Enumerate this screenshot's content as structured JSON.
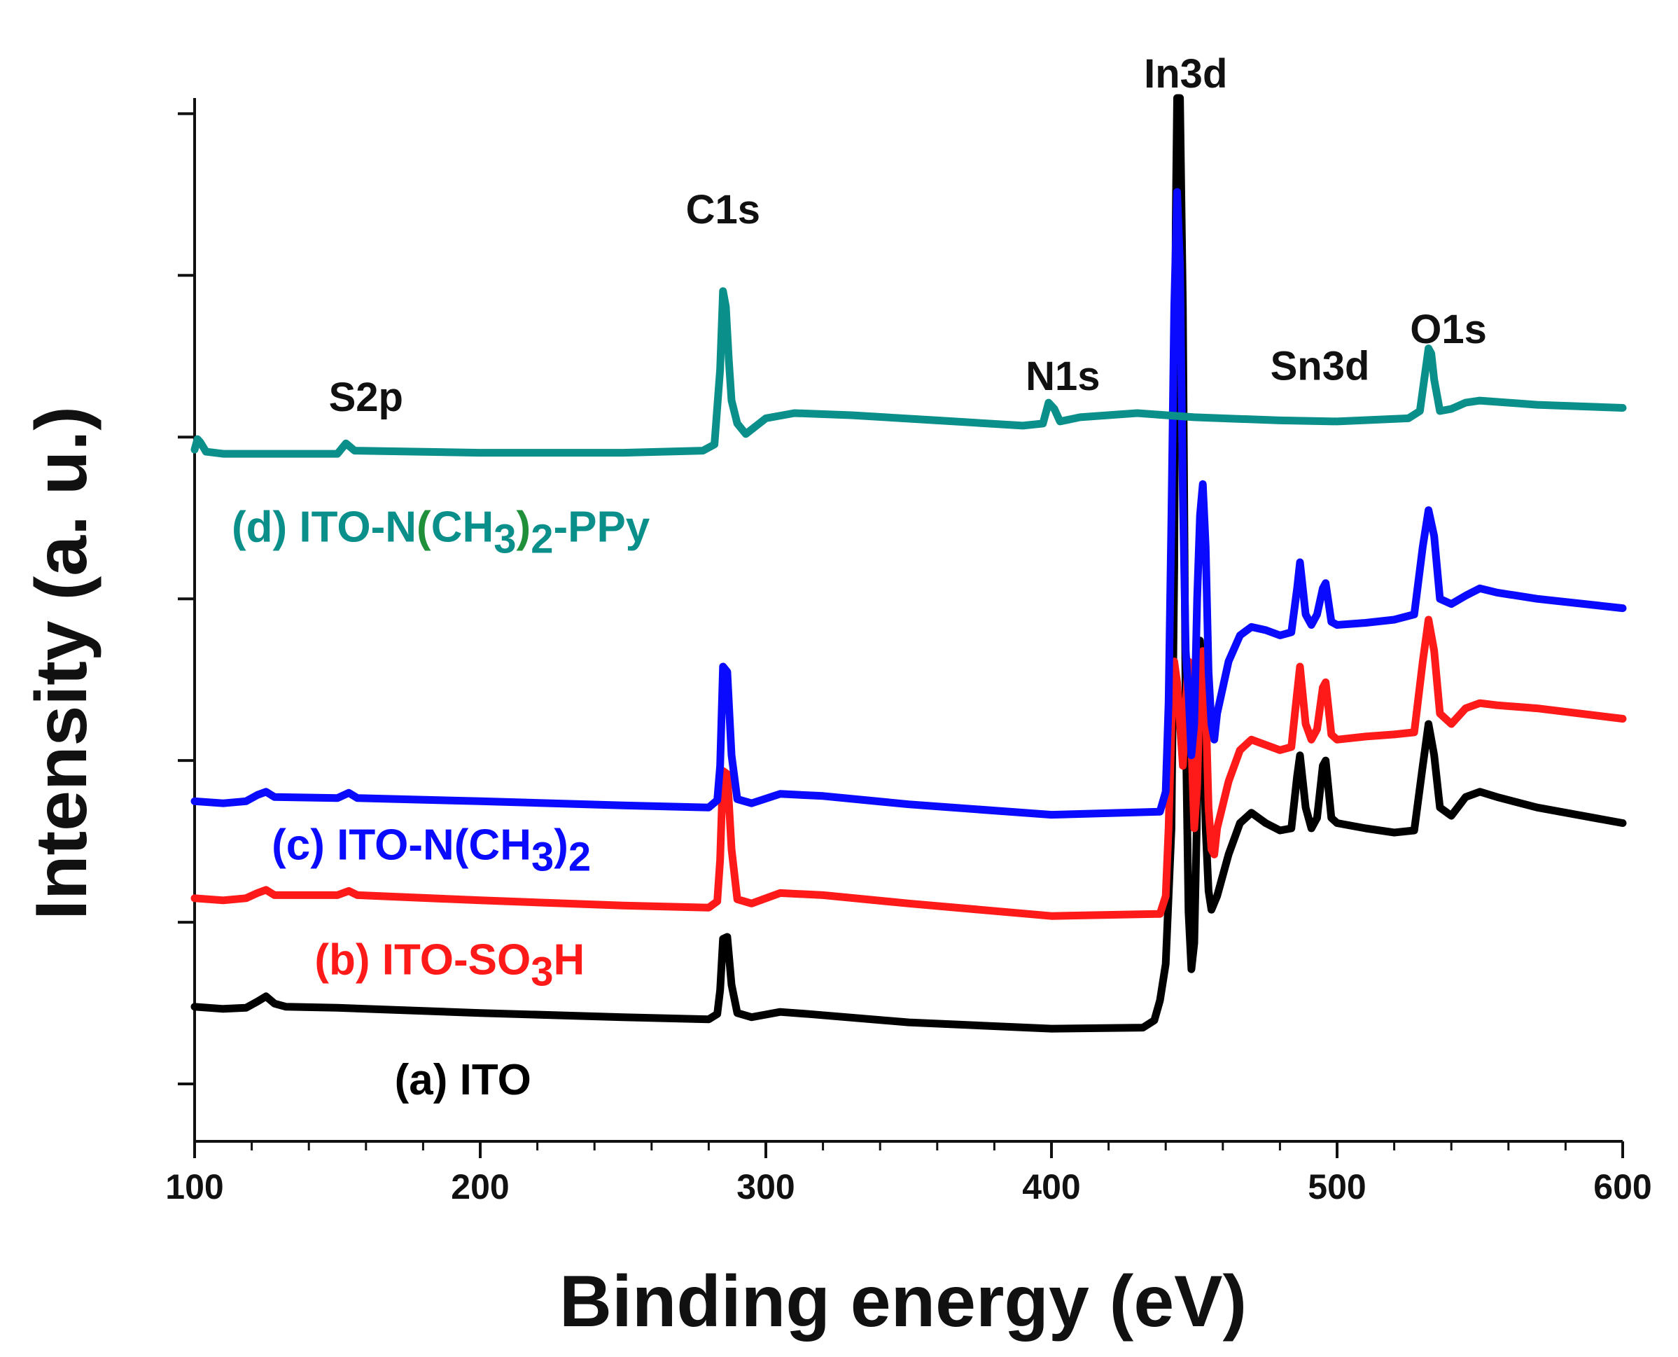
{
  "chart_data": {
    "type": "line",
    "title": "",
    "xlabel": "Binding energy (eV)",
    "ylabel": "Intensity (a. u.)",
    "xlim": [
      100,
      600
    ],
    "ylim": [
      0,
      100
    ],
    "x_ticks": [
      100,
      200,
      300,
      400,
      500,
      600
    ],
    "x_tick_labels": [
      "100",
      "200",
      "300",
      "400",
      "500",
      "600"
    ],
    "y_tick_values": [
      5.5,
      21,
      36.5,
      52,
      67.5,
      83,
      98.5
    ],
    "grid": false,
    "legend": "inline labels",
    "peak_labels": [
      {
        "text": "S2p",
        "x": 160,
        "y": 70
      },
      {
        "text": "C1s",
        "x": 285,
        "y": 88
      },
      {
        "text": "N1s",
        "x": 404,
        "y": 72
      },
      {
        "text": "In3d",
        "x": 447,
        "y": 101
      },
      {
        "text": "Sn3d",
        "x": 494,
        "y": 73
      },
      {
        "text": "O1s",
        "x": 539,
        "y": 76.5
      }
    ],
    "series": [
      {
        "name": "(a) ITO",
        "label_parts": [
          {
            "t": "(a) ITO",
            "sub": false
          }
        ],
        "label_pos": [
          170,
          4.5
        ],
        "color": "#000000",
        "points": [
          [
            100,
            12.9
          ],
          [
            110,
            12.7
          ],
          [
            118,
            12.8
          ],
          [
            122,
            13.4
          ],
          [
            125,
            13.9
          ],
          [
            128,
            13.2
          ],
          [
            132,
            12.9
          ],
          [
            150,
            12.8
          ],
          [
            200,
            12.3
          ],
          [
            250,
            11.9
          ],
          [
            280,
            11.7
          ],
          [
            283,
            12.2
          ],
          [
            284,
            14.5
          ],
          [
            285,
            19.4
          ],
          [
            286.5,
            19.6
          ],
          [
            288,
            15
          ],
          [
            290,
            12.3
          ],
          [
            295,
            11.9
          ],
          [
            305,
            12.4
          ],
          [
            315,
            12.2
          ],
          [
            350,
            11.4
          ],
          [
            400,
            10.8
          ],
          [
            432,
            10.9
          ],
          [
            436,
            11.6
          ],
          [
            438,
            13.5
          ],
          [
            440,
            17
          ],
          [
            442,
            30
          ],
          [
            443,
            55
          ],
          [
            443.5,
            88
          ],
          [
            444,
            100
          ],
          [
            445,
            100
          ],
          [
            446,
            80
          ],
          [
            447,
            40
          ],
          [
            448,
            22
          ],
          [
            449,
            16.5
          ],
          [
            450,
            19
          ],
          [
            451,
            32
          ],
          [
            452,
            48
          ],
          [
            453,
            42
          ],
          [
            454,
            30
          ],
          [
            455,
            24
          ],
          [
            456,
            22.2
          ],
          [
            458,
            23.5
          ],
          [
            462,
            27.5
          ],
          [
            466,
            30.5
          ],
          [
            470,
            31.5
          ],
          [
            475,
            30.5
          ],
          [
            480,
            29.8
          ],
          [
            484,
            30
          ],
          [
            486,
            35
          ],
          [
            487,
            37
          ],
          [
            489,
            32
          ],
          [
            491,
            30
          ],
          [
            493,
            31
          ],
          [
            495,
            36
          ],
          [
            496,
            36.5
          ],
          [
            498,
            31
          ],
          [
            500,
            30.5
          ],
          [
            510,
            30
          ],
          [
            520,
            29.6
          ],
          [
            527,
            29.8
          ],
          [
            530,
            36
          ],
          [
            532,
            40
          ],
          [
            534,
            37
          ],
          [
            536,
            32
          ],
          [
            540,
            31.2
          ],
          [
            545,
            33
          ],
          [
            550,
            33.5
          ],
          [
            556,
            33
          ],
          [
            570,
            32
          ],
          [
            600,
            30.5
          ]
        ]
      },
      {
        "name": "(b) ITO-SO3H",
        "label_parts": [
          {
            "t": "(b) ITO-SO",
            "sub": false
          },
          {
            "t": "3",
            "sub": true
          },
          {
            "t": "H",
            "sub": false
          }
        ],
        "label_pos": [
          142,
          16
        ],
        "color": "#ff1a1a",
        "points": [
          [
            100,
            23.3
          ],
          [
            110,
            23.1
          ],
          [
            118,
            23.3
          ],
          [
            122,
            23.8
          ],
          [
            125,
            24.1
          ],
          [
            128,
            23.6
          ],
          [
            150,
            23.6
          ],
          [
            154,
            24
          ],
          [
            157,
            23.6
          ],
          [
            200,
            23.1
          ],
          [
            250,
            22.6
          ],
          [
            280,
            22.4
          ],
          [
            283,
            23
          ],
          [
            284,
            27
          ],
          [
            285,
            35.5
          ],
          [
            286.5,
            35.2
          ],
          [
            288,
            28
          ],
          [
            290,
            23.2
          ],
          [
            295,
            22.8
          ],
          [
            305,
            23.8
          ],
          [
            320,
            23.6
          ],
          [
            350,
            22.8
          ],
          [
            400,
            21.6
          ],
          [
            438,
            21.8
          ],
          [
            440,
            23.5
          ],
          [
            441,
            30
          ],
          [
            442,
            40
          ],
          [
            443,
            46
          ],
          [
            444,
            44
          ],
          [
            445,
            40
          ],
          [
            446,
            36
          ],
          [
            447,
            42
          ],
          [
            448,
            46
          ],
          [
            449,
            38
          ],
          [
            450,
            30
          ],
          [
            451,
            34
          ],
          [
            452,
            44
          ],
          [
            453,
            47
          ],
          [
            454,
            42
          ],
          [
            455,
            32
          ],
          [
            456,
            28
          ],
          [
            457,
            27.5
          ],
          [
            458,
            30
          ],
          [
            462,
            34.5
          ],
          [
            466,
            37.5
          ],
          [
            470,
            38.5
          ],
          [
            475,
            38
          ],
          [
            480,
            37.5
          ],
          [
            484,
            37.8
          ],
          [
            486,
            43
          ],
          [
            487,
            45.5
          ],
          [
            489,
            40
          ],
          [
            491,
            38.5
          ],
          [
            493,
            39.5
          ],
          [
            495,
            43.5
          ],
          [
            496,
            44
          ],
          [
            498,
            39
          ],
          [
            500,
            38.5
          ],
          [
            510,
            38.8
          ],
          [
            520,
            39
          ],
          [
            527,
            39.2
          ],
          [
            530,
            46
          ],
          [
            532,
            50
          ],
          [
            534,
            47
          ],
          [
            536,
            41
          ],
          [
            540,
            40
          ],
          [
            545,
            41.5
          ],
          [
            550,
            42
          ],
          [
            556,
            41.8
          ],
          [
            570,
            41.5
          ],
          [
            600,
            40.5
          ]
        ]
      },
      {
        "name": "(c) ITO-N(CH3)2",
        "label_parts": [
          {
            "t": "(c) ITO-N(CH",
            "sub": false
          },
          {
            "t": "3",
            "sub": true
          },
          {
            "t": ")",
            "sub": false
          },
          {
            "t": "2",
            "sub": true
          }
        ],
        "label_pos": [
          127,
          27
        ],
        "color": "#0a0aff",
        "points": [
          [
            100,
            32.6
          ],
          [
            110,
            32.4
          ],
          [
            118,
            32.6
          ],
          [
            122,
            33.2
          ],
          [
            125,
            33.5
          ],
          [
            128,
            33
          ],
          [
            150,
            32.9
          ],
          [
            154,
            33.4
          ],
          [
            157,
            32.9
          ],
          [
            200,
            32.6
          ],
          [
            250,
            32.2
          ],
          [
            280,
            32
          ],
          [
            283,
            32.7
          ],
          [
            284,
            36
          ],
          [
            285,
            45.5
          ],
          [
            286.5,
            45
          ],
          [
            288,
            37
          ],
          [
            290,
            32.8
          ],
          [
            295,
            32.4
          ],
          [
            305,
            33.3
          ],
          [
            320,
            33.1
          ],
          [
            350,
            32.3
          ],
          [
            400,
            31.3
          ],
          [
            438,
            31.6
          ],
          [
            440,
            33.5
          ],
          [
            441,
            42
          ],
          [
            442,
            60
          ],
          [
            443,
            80
          ],
          [
            444,
            91
          ],
          [
            445,
            84
          ],
          [
            446,
            62
          ],
          [
            447,
            47
          ],
          [
            448,
            43
          ],
          [
            449,
            37
          ],
          [
            450,
            40
          ],
          [
            451,
            52
          ],
          [
            452,
            60
          ],
          [
            453,
            63
          ],
          [
            454,
            57
          ],
          [
            455,
            45
          ],
          [
            456,
            40
          ],
          [
            457,
            38.5
          ],
          [
            458,
            41
          ],
          [
            462,
            46
          ],
          [
            466,
            48.5
          ],
          [
            470,
            49.3
          ],
          [
            475,
            49
          ],
          [
            480,
            48.5
          ],
          [
            484,
            48.8
          ],
          [
            486,
            53
          ],
          [
            487,
            55.5
          ],
          [
            489,
            50.5
          ],
          [
            491,
            49.5
          ],
          [
            493,
            50.5
          ],
          [
            495,
            53
          ],
          [
            496,
            53.5
          ],
          [
            498,
            49.8
          ],
          [
            500,
            49.5
          ],
          [
            510,
            49.7
          ],
          [
            520,
            50
          ],
          [
            527,
            50.5
          ],
          [
            530,
            57
          ],
          [
            532,
            60.5
          ],
          [
            534,
            58
          ],
          [
            536,
            52
          ],
          [
            540,
            51.5
          ],
          [
            545,
            52.3
          ],
          [
            550,
            53
          ],
          [
            556,
            52.6
          ],
          [
            570,
            52
          ],
          [
            600,
            51.1
          ]
        ]
      },
      {
        "name": "(d) ITO-N(CH3)2-PPy",
        "label_parts": [
          {
            "t": "(d) ITO-N",
            "sub": false
          },
          {
            "t": "(",
            "sub": false,
            "color": "#1f8f3a"
          },
          {
            "t": "CH",
            "sub": false
          },
          {
            "t": "3",
            "sub": true
          },
          {
            "t": ")",
            "sub": false,
            "color": "#1f8f3a"
          },
          {
            "t": "2",
            "sub": true
          },
          {
            "t": "-PPy",
            "sub": false
          }
        ],
        "label_pos": [
          113,
          57.5
        ],
        "color": "#0a8f8a",
        "points": [
          [
            100,
            66.3
          ],
          [
            101,
            67.3
          ],
          [
            102,
            67
          ],
          [
            104,
            66.1
          ],
          [
            110,
            65.9
          ],
          [
            150,
            65.9
          ],
          [
            153,
            66.9
          ],
          [
            156,
            66.2
          ],
          [
            200,
            66
          ],
          [
            250,
            66
          ],
          [
            278,
            66.2
          ],
          [
            282,
            66.8
          ],
          [
            284,
            74
          ],
          [
            285,
            81.5
          ],
          [
            286,
            80
          ],
          [
            287,
            75
          ],
          [
            288,
            71
          ],
          [
            290,
            68.8
          ],
          [
            293,
            67.8
          ],
          [
            300,
            69.3
          ],
          [
            310,
            69.8
          ],
          [
            330,
            69.6
          ],
          [
            360,
            69.1
          ],
          [
            390,
            68.6
          ],
          [
            397,
            68.8
          ],
          [
            399,
            70.8
          ],
          [
            401,
            70.2
          ],
          [
            403,
            69
          ],
          [
            410,
            69.4
          ],
          [
            430,
            69.8
          ],
          [
            450,
            69.4
          ],
          [
            480,
            69.1
          ],
          [
            500,
            69
          ],
          [
            525,
            69.3
          ],
          [
            529,
            70
          ],
          [
            531,
            74
          ],
          [
            532,
            76
          ],
          [
            533,
            75.5
          ],
          [
            534,
            73
          ],
          [
            536,
            70
          ],
          [
            540,
            70.2
          ],
          [
            545,
            70.8
          ],
          [
            550,
            71
          ],
          [
            570,
            70.6
          ],
          [
            600,
            70.3
          ]
        ]
      }
    ]
  }
}
